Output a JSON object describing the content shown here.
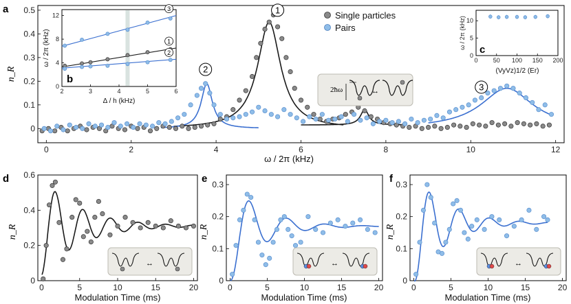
{
  "colors": {
    "single": "#8a8a8a",
    "pair": "#8fbde8",
    "fit_single": "#1a1a1a",
    "fit_pair": "#3a6fd0",
    "inset_bg": "#ecebe6",
    "band": "#cfdcd8"
  },
  "panel_labels": {
    "a": "a",
    "b": "b",
    "c": "c",
    "d": "d",
    "e": "e",
    "f": "f"
  },
  "labels": {
    "ylabel_a": "n_R",
    "xlabel_a": "ω / 2π (kHz)",
    "xlabel_b": "Δ / h (kHz)",
    "ylabel_b": "ω / 2π (kHz)",
    "ylabel_c": "ω / 2π (kHz)",
    "xlabel_c": "(VyVz)1/2 (Er)",
    "xlabel_def": "Modulation Time (ms)",
    "ylabel_def": "n_R",
    "hbar_label": "2ħω"
  },
  "legend": {
    "single": "Single particles",
    "pairs": "Pairs"
  },
  "chart_data": [
    {
      "panel": "a",
      "type": "scatter",
      "xlabel": "ω / 2π (kHz)",
      "ylabel": "n_R",
      "xlim": [
        -0.2,
        12.2
      ],
      "ylim": [
        -0.06,
        0.52
      ],
      "xticks": [
        0,
        2,
        4,
        6,
        8,
        10,
        12
      ],
      "yticks": [
        0,
        0.1,
        0.2,
        0.3,
        0.4,
        0.5
      ],
      "peak_labels": [
        {
          "text": "1",
          "x": 5.45,
          "y": 0.5
        },
        {
          "text": "2",
          "x": 3.75,
          "y": 0.25
        },
        {
          "text": "3",
          "x": 10.25,
          "y": 0.175
        }
      ],
      "series": [
        {
          "name": "Single particles",
          "x": [
            -0.1,
            0.05,
            0.2,
            0.35,
            0.5,
            0.65,
            0.8,
            0.95,
            1.1,
            1.25,
            1.4,
            1.55,
            1.7,
            1.85,
            2.0,
            2.15,
            2.3,
            2.45,
            2.6,
            2.75,
            2.9,
            3.05,
            3.2,
            3.35,
            3.5,
            3.65,
            3.8,
            3.95,
            4.1,
            4.25,
            4.4,
            4.55,
            4.7,
            4.85,
            4.95,
            5.05,
            5.15,
            5.25,
            5.35,
            5.45,
            5.55,
            5.65,
            5.75,
            5.85,
            6.0,
            6.15,
            6.3,
            6.45,
            6.6,
            6.75,
            6.9,
            7.05,
            7.2,
            7.35,
            7.5,
            7.65,
            7.8,
            7.95,
            8.1,
            8.25,
            8.4,
            8.55,
            8.7,
            8.85,
            9.0,
            9.15,
            9.3,
            9.45,
            9.6,
            9.75,
            9.9,
            10.05,
            10.2,
            10.35,
            10.5,
            10.65,
            10.8,
            10.95,
            11.1,
            11.25,
            11.4,
            11.55,
            11.7,
            11.85
          ],
          "y": [
            -0.01,
            0.0,
            -0.01,
            0.005,
            -0.01,
            0.0,
            0.01,
            -0.005,
            0.005,
            0.0,
            -0.01,
            0.01,
            0.0,
            -0.005,
            0.01,
            0.0,
            0.005,
            -0.01,
            0.0,
            0.01,
            0.005,
            0.0,
            0.01,
            0.0,
            0.005,
            0.01,
            0.015,
            0.02,
            0.04,
            0.05,
            0.08,
            0.12,
            0.16,
            0.22,
            0.3,
            0.36,
            0.42,
            0.45,
            0.48,
            0.43,
            0.38,
            0.3,
            0.24,
            0.17,
            0.12,
            0.09,
            0.06,
            0.04,
            0.03,
            0.04,
            0.045,
            0.06,
            0.07,
            0.09,
            0.075,
            0.05,
            0.04,
            0.025,
            0.02,
            0.015,
            0.01,
            0.005,
            0.01,
            0.0,
            0.005,
            0.01,
            0.0,
            0.005,
            0.015,
            0.01,
            0.005,
            0.02,
            0.015,
            0.01,
            0.025,
            0.015,
            0.02,
            0.01,
            0.025,
            0.02,
            0.015,
            0.02,
            0.01,
            0.015
          ]
        },
        {
          "name": "Pairs",
          "x": [
            -0.05,
            0.1,
            0.25,
            0.4,
            0.55,
            0.7,
            0.85,
            1.0,
            1.15,
            1.3,
            1.45,
            1.6,
            1.75,
            1.9,
            2.05,
            2.2,
            2.35,
            2.5,
            2.65,
            2.8,
            2.95,
            3.1,
            3.25,
            3.4,
            3.55,
            3.65,
            3.75,
            3.85,
            3.95,
            4.1,
            4.25,
            4.4,
            4.55,
            4.7,
            4.85,
            5.0,
            5.15,
            5.3,
            5.45,
            5.6,
            5.75,
            5.9,
            6.05,
            6.2,
            6.35,
            6.5,
            6.65,
            6.8,
            6.95,
            7.1,
            7.25,
            7.4,
            7.55,
            7.7,
            7.85,
            8.0,
            8.15,
            8.3,
            8.45,
            8.6,
            8.75,
            8.9,
            9.05,
            9.2,
            9.35,
            9.5,
            9.65,
            9.8,
            9.95,
            10.1,
            10.25,
            10.4,
            10.55,
            10.7,
            10.85,
            11.0,
            11.15,
            11.3,
            11.45,
            11.6,
            11.75,
            11.9
          ],
          "y": [
            0.0,
            -0.01,
            0.01,
            -0.005,
            0.015,
            0.005,
            0.0,
            0.02,
            0.01,
            0.015,
            0.005,
            0.025,
            0.01,
            0.02,
            0.005,
            0.02,
            0.015,
            0.01,
            0.025,
            0.02,
            0.03,
            0.045,
            0.06,
            0.1,
            0.14,
            0.17,
            0.19,
            0.15,
            0.1,
            0.06,
            0.04,
            0.045,
            0.05,
            0.06,
            0.07,
            0.09,
            0.075,
            0.06,
            0.05,
            0.08,
            0.06,
            0.045,
            0.03,
            0.05,
            0.04,
            0.06,
            0.035,
            0.04,
            0.05,
            0.03,
            0.06,
            0.035,
            0.045,
            0.02,
            0.03,
            0.035,
            0.025,
            0.03,
            0.02,
            0.04,
            0.025,
            0.035,
            0.04,
            0.055,
            0.045,
            0.07,
            0.08,
            0.09,
            0.1,
            0.12,
            0.13,
            0.15,
            0.16,
            0.17,
            0.18,
            0.17,
            0.15,
            0.13,
            0.11,
            0.08,
            0.1,
            0.06
          ]
        }
      ],
      "fits": [
        {
          "series": "Single particles",
          "model": "lorentzian",
          "x0": 5.25,
          "amp": 0.45,
          "gamma": 0.33,
          "x_range": [
            3.0,
            7.0
          ],
          "offset": 0.0
        },
        {
          "series": "Single particles",
          "model": "lorentzian",
          "x0": 7.5,
          "amp": 0.065,
          "gamma": 0.12,
          "x_range": [
            6.0,
            8.5
          ],
          "offset": 0.015
        },
        {
          "series": "Pairs",
          "model": "lorentzian",
          "x0": 3.78,
          "amp": 0.19,
          "gamma": 0.16,
          "x_range": [
            2.7,
            5.0
          ],
          "offset": 0.0
        },
        {
          "series": "Pairs",
          "model": "lorentzian",
          "x0": 10.85,
          "amp": 0.17,
          "gamma": 0.75,
          "x_range": [
            9.0,
            11.9
          ],
          "offset": 0.0
        }
      ]
    },
    {
      "panel": "b",
      "type": "scatter",
      "xlabel": "Δ / h (kHz)",
      "ylabel": "ω / 2π (kHz)",
      "xlim": [
        2,
        6
      ],
      "ylim": [
        0,
        13
      ],
      "xticks": [
        2,
        3,
        4,
        5,
        6
      ],
      "yticks": [
        0,
        4,
        8,
        12
      ],
      "band_x": 4.3,
      "series": [
        {
          "name": "1",
          "color": "single",
          "x": [
            2.1,
            2.7,
            3.0,
            3.6,
            4.3,
            5.0,
            5.8
          ],
          "y": [
            3.5,
            3.9,
            4.1,
            4.6,
            5.3,
            5.8,
            6.3
          ],
          "line": [
            [
              2,
              3.3
            ],
            [
              6,
              6.5
            ]
          ]
        },
        {
          "name": "2",
          "color": "pair",
          "x": [
            2.1,
            2.7,
            3.0,
            3.6,
            4.3,
            5.0,
            5.8
          ],
          "y": [
            3.0,
            3.3,
            3.4,
            3.5,
            3.8,
            4.1,
            4.5
          ],
          "line": [
            [
              2,
              3.1
            ],
            [
              6,
              4.6
            ]
          ]
        },
        {
          "name": "3",
          "color": "pair",
          "x": [
            2.1,
            2.7,
            3.6,
            4.3,
            5.0,
            5.8
          ],
          "y": [
            6.9,
            7.9,
            8.9,
            9.6,
            10.8,
            11.5
          ],
          "line": [
            [
              2,
              6.8
            ],
            [
              6,
              12.0
            ]
          ]
        }
      ]
    },
    {
      "panel": "c",
      "type": "scatter",
      "xlabel": "(VyVz)1/2 (Er)",
      "ylabel": "ω / 2π (kHz)",
      "xlim": [
        0,
        200
      ],
      "ylim": [
        0,
        13
      ],
      "xticks": [
        0,
        50,
        100,
        150,
        200
      ],
      "yticks": [
        0,
        5,
        10
      ],
      "series": [
        {
          "name": "Pairs",
          "x": [
            35,
            55,
            75,
            100,
            120,
            145,
            175
          ],
          "y": [
            11.2,
            11.0,
            11.1,
            11.1,
            11.0,
            11.1,
            11.3
          ]
        }
      ]
    },
    {
      "panel": "d",
      "type": "scatter",
      "xlabel": "Modulation Time (ms)",
      "ylabel": "n_R",
      "xlim": [
        -0.5,
        20.5
      ],
      "ylim": [
        0,
        0.6
      ],
      "xticks": [
        0,
        5,
        10,
        15,
        20
      ],
      "yticks": [
        0,
        0.2,
        0.4,
        0.6
      ],
      "series": [
        {
          "name": "Single particles",
          "x": [
            0.2,
            0.6,
            1.0,
            1.4,
            1.8,
            2.3,
            2.8,
            3.3,
            4.0,
            4.5,
            5.0,
            5.5,
            6.0,
            6.5,
            7.0,
            7.5,
            8.0,
            9.0,
            10.0,
            11.0,
            12.0,
            13.0,
            14.0,
            15.0,
            16.0,
            17.0,
            18.0,
            19.0,
            20.0
          ],
          "y": [
            0.01,
            0.2,
            0.43,
            0.54,
            0.56,
            0.33,
            0.12,
            0.18,
            0.36,
            0.46,
            0.44,
            0.25,
            0.28,
            0.22,
            0.36,
            0.45,
            0.38,
            0.26,
            0.31,
            0.36,
            0.33,
            0.3,
            0.33,
            0.31,
            0.3,
            0.34,
            0.31,
            0.3,
            0.31
          ]
        }
      ],
      "fit": {
        "model": "damped_cos",
        "offset": 0.31,
        "amp": 0.28,
        "freq_khz": 0.275,
        "tau_ms": 5.0
      }
    },
    {
      "panel": "e",
      "type": "scatter",
      "xlabel": "Modulation Time (ms)",
      "ylabel": "n_R",
      "xlim": [
        -0.5,
        20.5
      ],
      "ylim": [
        0,
        0.33
      ],
      "xticks": [
        0,
        5,
        10,
        15,
        20
      ],
      "yticks": [
        0,
        0.1,
        0.2,
        0.3
      ],
      "series": [
        {
          "name": "Pairs",
          "x": [
            0.3,
            0.8,
            1.3,
            1.8,
            2.3,
            2.8,
            3.3,
            3.8,
            4.3,
            4.8,
            5.3,
            5.8,
            6.3,
            6.8,
            7.3,
            7.8,
            8.3,
            8.8,
            9.5,
            10.5,
            11.5,
            12.5,
            13.5,
            14.5,
            15.5,
            16.5,
            17.5,
            18.5,
            19.5
          ],
          "y": [
            0.02,
            0.11,
            0.19,
            0.22,
            0.27,
            0.26,
            0.19,
            0.12,
            0.08,
            0.05,
            0.07,
            0.12,
            0.16,
            0.19,
            0.2,
            0.16,
            0.14,
            0.11,
            0.12,
            0.2,
            0.16,
            0.15,
            0.18,
            0.19,
            0.17,
            0.18,
            0.19,
            0.16,
            0.15
          ]
        }
      ],
      "fit": {
        "model": "damped_cos",
        "offset": 0.17,
        "amp": 0.17,
        "freq_khz": 0.195,
        "tau_ms": 4.0,
        "rise_ms": 0.8
      }
    },
    {
      "panel": "f",
      "type": "scatter",
      "xlabel": "Modulation Time (ms)",
      "ylabel": "n_R",
      "xlim": [
        -0.5,
        20.5
      ],
      "ylim": [
        0,
        0.33
      ],
      "xticks": [
        0,
        5,
        10,
        15,
        20
      ],
      "yticks": [
        0,
        0.1,
        0.2,
        0.3
      ],
      "series": [
        {
          "name": "Pairs",
          "x": [
            0.3,
            0.8,
            1.3,
            1.8,
            2.3,
            2.8,
            3.3,
            3.8,
            4.3,
            4.8,
            5.3,
            5.8,
            6.3,
            6.8,
            7.3,
            7.8,
            8.5,
            9.5,
            10.5,
            11.5,
            12.5,
            13.5,
            14.5,
            15.5,
            16.5,
            17.5,
            18.0
          ],
          "y": [
            0.02,
            0.12,
            0.22,
            0.3,
            0.26,
            0.18,
            0.09,
            0.085,
            0.12,
            0.16,
            0.24,
            0.25,
            0.22,
            0.15,
            0.13,
            0.17,
            0.19,
            0.16,
            0.2,
            0.19,
            0.14,
            0.17,
            0.19,
            0.22,
            0.16,
            0.2,
            0.19
          ]
        }
      ],
      "fit": {
        "model": "damped_cos",
        "offset": 0.18,
        "amp": 0.2,
        "freq_khz": 0.245,
        "tau_ms": 4.0,
        "rise_ms": 0.8,
        "x_end": 18.0
      }
    }
  ]
}
